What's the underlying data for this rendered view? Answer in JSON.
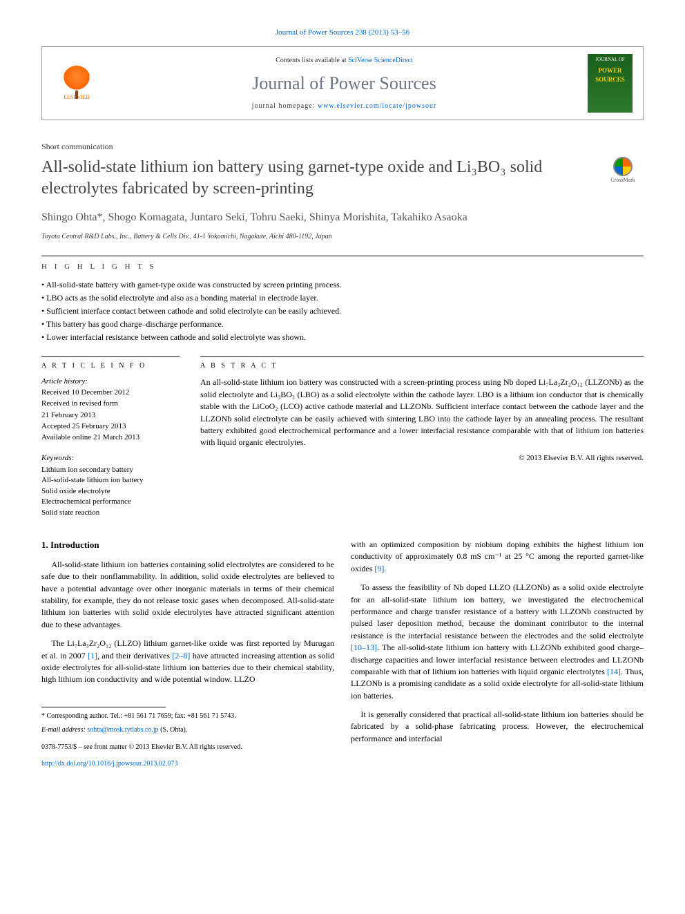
{
  "header": {
    "citation": "Journal of Power Sources 238 (2013) 53–56",
    "contents_prefix": "Contents lists available at ",
    "contents_link": "SciVerse ScienceDirect",
    "journal_name": "Journal of Power Sources",
    "homepage_prefix": "journal homepage: ",
    "homepage_link": "www.elsevier.com/locate/jpowsour",
    "publisher": "ELSEVIER",
    "cover_label": "JOURNAL OF",
    "cover_title": "POWER SOURCES"
  },
  "article": {
    "type": "Short communication",
    "title": "All-solid-state lithium ion battery using garnet-type oxide and Li₃BO₃ solid electrolytes fabricated by screen-printing",
    "crossmark": "CrossMark",
    "authors": "Shingo Ohta*, Shogo Komagata, Juntaro Seki, Tohru Saeki, Shinya Morishita, Takahiko Asaoka",
    "affiliation": "Toyota Central R&D Labs., Inc., Battery & Cells Div., 41-1 Yokomichi, Nagakute, Aichi 480-1192, Japan"
  },
  "highlights": {
    "label": "H I G H L I G H T S",
    "items": [
      "All-solid-state battery with garnet-type oxide was constructed by screen printing process.",
      "LBO acts as the solid electrolyte and also as a bonding material in electrode layer.",
      "Sufficient interface contact between cathode and solid electrolyte can be easily achieved.",
      "This battery has good charge–discharge performance.",
      "Lower interfacial resistance between cathode and solid electrolyte was shown."
    ]
  },
  "info": {
    "article_info_label": "A R T I C L E  I N F O",
    "abstract_label": "A B S T R A C T",
    "history_label": "Article history:",
    "history": [
      "Received 10 December 2012",
      "Received in revised form",
      "21 February 2013",
      "Accepted 25 February 2013",
      "Available online 21 March 2013"
    ],
    "keywords_label": "Keywords:",
    "keywords": [
      "Lithium ion secondary battery",
      "All-solid-state lithium ion battery",
      "Solid oxide electrolyte",
      "Electrochemical performance",
      "Solid state reaction"
    ],
    "abstract": "An all-solid-state lithium ion battery was constructed with a screen-printing process using Nb doped Li₇La₃Zr₂O₁₂ (LLZONb) as the solid electrolyte and Li₃BO₃ (LBO) as a solid electrolyte within the cathode layer. LBO is a lithium ion conductor that is chemically stable with the LiCoO₂ (LCO) active cathode material and LLZONb. Sufficient interface contact between the cathode layer and the LLZONb solid electrolyte can be easily achieved with sintering LBO into the cathode layer by an annealing process. The resultant battery exhibited good electrochemical performance and a lower interfacial resistance comparable with that of lithium ion batteries with liquid organic electrolytes.",
    "copyright": "© 2013 Elsevier B.V. All rights reserved."
  },
  "body": {
    "heading": "1. Introduction",
    "p1": "All-solid-state lithium ion batteries containing solid electrolytes are considered to be safe due to their nonflammability. In addition, solid oxide electrolytes are believed to have a potential advantage over other inorganic materials in terms of their chemical stability, for example, they do not release toxic gases when decomposed. All-solid-state lithium ion batteries with solid oxide electrolytes have attracted significant attention due to these advantages.",
    "p2a": "The Li₇La₃Zr₂O₁₂ (LLZO) lithium garnet-like oxide was first reported by Murugan et al. in 2007 ",
    "p2_ref1": "[1]",
    "p2b": ", and their derivatives ",
    "p2_ref2": "[2–8]",
    "p2c": " have attracted increasing attention as solid oxide electrolytes for all-solid-state lithium ion batteries due to their chemical stability, high lithium ion conductivity and wide potential window. LLZO",
    "p3a": "with an optimized composition by niobium doping exhibits the highest lithium ion conductivity of approximately 0.8 mS cm⁻¹ at 25 °C among the reported garnet-like oxides ",
    "p3_ref1": "[9]",
    "p3b": ".",
    "p4a": "To assess the feasibility of Nb doped LLZO (LLZONb) as a solid oxide electrolyte for an all-solid-state lithium ion battery, we investigated the electrochemical performance and charge transfer resistance of a battery with LLZONb constructed by pulsed laser deposition method, because the dominant contributor to the internal resistance is the interfacial resistance between the electrodes and the solid electrolyte ",
    "p4_ref1": "[10–13]",
    "p4b": ". The all-solid-state lithium ion battery with LLZONb exhibited good charge–discharge capacities and lower interfacial resistance between electrodes and LLZONb comparable with that of lithium ion batteries with liquid organic electrolytes ",
    "p4_ref2": "[14]",
    "p4c": ". Thus, LLZONb is a promising candidate as a solid oxide electrolyte for all-solid-state lithium ion batteries.",
    "p5": "It is generally considered that practical all-solid-state lithium ion batteries should be fabricated by a solid-phase fabricating process. However, the electrochemical performance and interfacial"
  },
  "footer": {
    "corr_author": "* Corresponding author. Tel.: +81 561 71 7659; fax: +81 561 71 5743.",
    "email_label": "E-mail address: ",
    "email": "sohta@mosk.tytlabs.co.jp",
    "email_suffix": " (S. Ohta).",
    "front_matter": "0378-7753/$ – see front matter © 2013 Elsevier B.V. All rights reserved.",
    "doi": "http://dx.doi.org/10.1016/j.jpowsour.2013.02.073"
  }
}
